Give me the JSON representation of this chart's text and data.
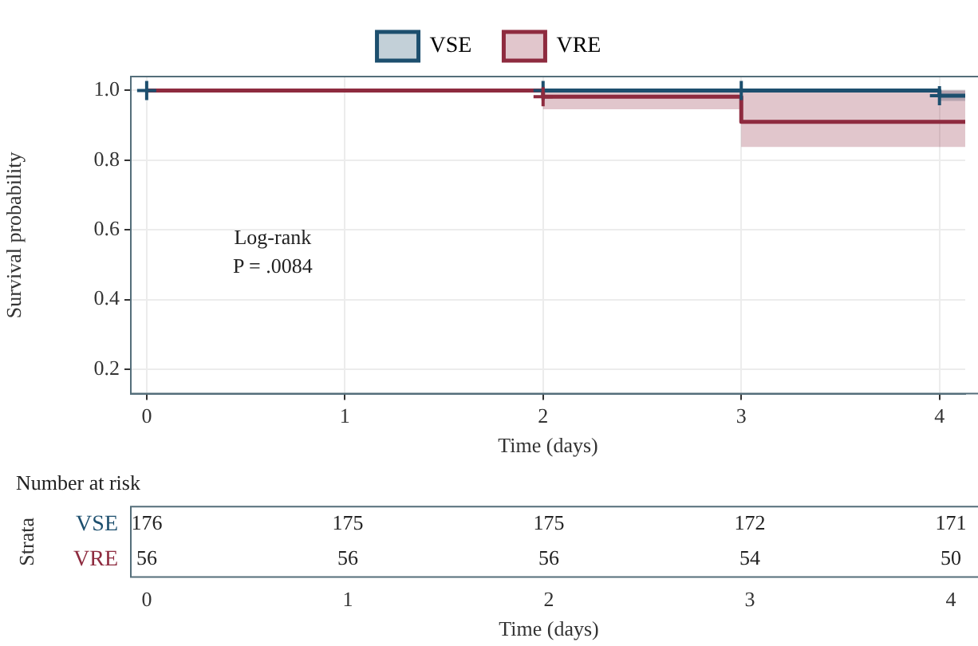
{
  "chart_data": [
    {
      "type": "step",
      "legend": "top",
      "grid": true,
      "xlabel": "Time (days)",
      "ylabel": "Survival probability",
      "xlim": [
        -0.08,
        4.13
      ],
      "xticks": [
        0,
        1,
        2,
        3,
        4
      ],
      "ylim": [
        0.13,
        1.04
      ],
      "yticks": [
        0.2,
        0.4,
        0.6,
        0.8,
        {
          "value": 1,
          "label": "1.0"
        }
      ],
      "annotations": [
        "Log-rank",
        "P = .0084"
      ],
      "series": [
        {
          "name": "VSE",
          "color": "#1d4f6e",
          "x": [
            0,
            4,
            4.13
          ],
          "values": [
            1,
            0.985,
            0.985
          ],
          "lower": [
            1,
            0.97,
            0.97
          ],
          "upper": [
            1,
            1,
            1
          ]
        },
        {
          "name": "VRE",
          "color": "#8e2b3f",
          "x": [
            0,
            2,
            3,
            4.13
          ],
          "values": [
            1,
            0.982,
            0.91,
            0.91
          ],
          "lower": [
            1,
            0.946,
            0.838,
            0.838
          ],
          "upper": [
            1,
            1,
            1,
            1
          ]
        },
        {
          "type": "scatter",
          "marker": "cross",
          "color": "#1d4f6e",
          "x": [
            0,
            2,
            3,
            4
          ],
          "values": [
            1,
            1,
            1,
            0.985
          ]
        },
        {
          "type": "scatter",
          "marker": "cross",
          "color": "#8e2b3f",
          "x": [
            2
          ],
          "values": [
            0.982
          ]
        }
      ]
    },
    {
      "type": "heatmap",
      "title": "Number at risk",
      "xlabel": "Time (days)",
      "ylabel": "Strata",
      "categories": [
        "0",
        "1",
        "2",
        "3",
        "4"
      ],
      "y_categories": [
        "VSE",
        "VRE"
      ],
      "data_labels": true,
      "cells": [
        [
          176,
          175,
          175,
          172,
          171
        ],
        [
          56,
          56,
          56,
          54,
          50
        ]
      ]
    }
  ]
}
